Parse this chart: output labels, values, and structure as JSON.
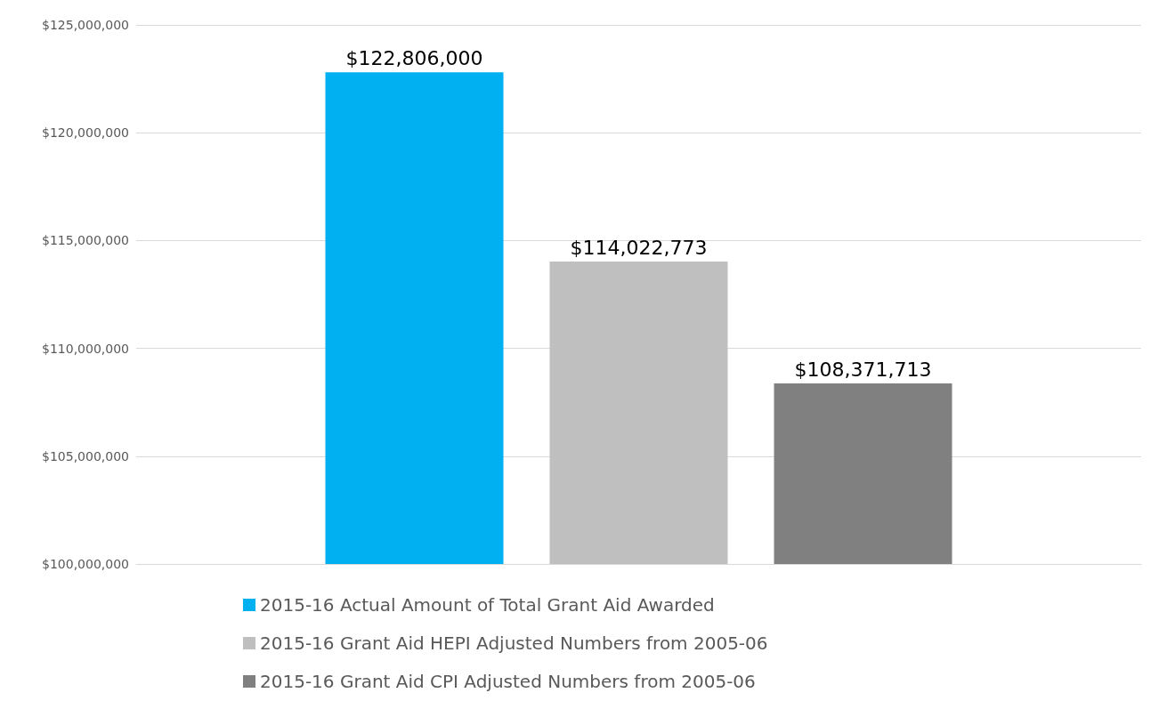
{
  "chart_data": {
    "type": "bar",
    "categories": [
      null
    ],
    "series": [
      {
        "name": "2015-16 Actual Amount of Total Grant Aid Awarded",
        "color": "#00b0f0",
        "values": [
          122806000
        ],
        "value_labels": [
          "$122,806,000"
        ]
      },
      {
        "name": "2015-16 Grant Aid HEPI Adjusted Numbers from 2005-06",
        "color": "#bfbfbf",
        "values": [
          114022773
        ],
        "value_labels": [
          "$114,022,773"
        ]
      },
      {
        "name": "2015-16 Grant Aid CPI Adjusted Numbers from 2005-06",
        "color": "#808080",
        "values": [
          108371713
        ],
        "value_labels": [
          "$108,371,713"
        ]
      }
    ],
    "ylim": [
      100000000,
      125000000
    ],
    "yticks": [
      {
        "value": 100000000,
        "label": "$100,000,000"
      },
      {
        "value": 105000000,
        "label": "$105,000,000"
      },
      {
        "value": 110000000,
        "label": "$110,000,000"
      },
      {
        "value": 115000000,
        "label": "$115,000,000"
      },
      {
        "value": 120000000,
        "label": "$120,000,000"
      },
      {
        "value": 125000000,
        "label": "$125,000,000"
      }
    ],
    "grid": "y",
    "legend": "bottom"
  }
}
